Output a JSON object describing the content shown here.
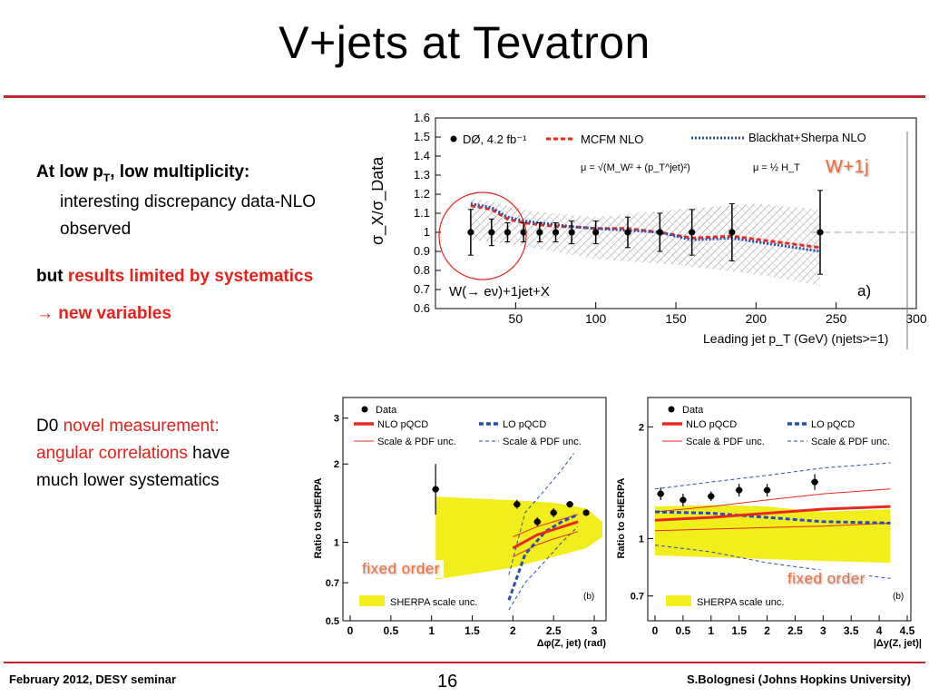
{
  "slide": {
    "title": "V+jets at Tevatron",
    "page_number": "16",
    "footer_left": "February 2012, DESY seminar",
    "footer_right": "S.Bolognesi (Johns Hopkins University)"
  },
  "text": {
    "low_pt_prefix": "At low p",
    "low_pt_sub": "T",
    "low_pt_suffix": ", low multiplicity:",
    "discrepancy_1": "interesting discrepancy data-NLO",
    "discrepancy_2": "observed",
    "but": "but ",
    "systematics": "results limited by systematics",
    "new_vars": "→ new variables",
    "d0": "D0 ",
    "novel": "novel measurement:",
    "angular": "angular correlations",
    "have": " have",
    "lower": "much lower systematics"
  },
  "colors": {
    "accent_red": "#e8201b",
    "rule_red": "#c0282d",
    "nlo_red": "#e62b1e",
    "lo_blue": "#2a4db0",
    "sherpa_yellow": "#f2ee1c",
    "tag_orange": "#f26b3a"
  },
  "tags": {
    "w1j": "W+1j",
    "fixed_order": "fixed order"
  },
  "chart_data": [
    {
      "type": "scatter",
      "name": "a",
      "xlabel": "Leading jet p_T (GeV) (njets>=1)",
      "ylabel": "σ_X/σ_Data",
      "xlim": [
        0,
        300
      ],
      "ylim": [
        0.6,
        1.6
      ],
      "xticks": [
        50,
        100,
        150,
        200,
        250,
        300
      ],
      "yticks": [
        0.6,
        0.7,
        0.8,
        0.9,
        1,
        1.1,
        1.2,
        1.3,
        1.4,
        1.5,
        1.6
      ],
      "legend": {
        "data": "DØ, 4.2 fb⁻¹",
        "mcfm": "MCFM NLO",
        "blackhat": "Blackhat+Sherpa NLO",
        "mcfm_scale": "μ = √(M_W² + (p_T^jet)²)",
        "bh_scale": "μ = ½ H_T"
      },
      "process": "W(→ eν)+1jet+X",
      "panel": "a)",
      "x": [
        22,
        35,
        45,
        55,
        65,
        75,
        85,
        100,
        120,
        140,
        160,
        185,
        240
      ],
      "data": [
        1.0,
        1.0,
        1.0,
        1.0,
        1.0,
        1.0,
        1.0,
        1.0,
        1.0,
        1.0,
        1.0,
        1.0,
        1.0
      ],
      "data_err": [
        0.12,
        0.07,
        0.05,
        0.05,
        0.05,
        0.05,
        0.06,
        0.06,
        0.08,
        0.1,
        0.12,
        0.15,
        0.22
      ],
      "series": [
        {
          "name": "MCFM NLO",
          "values": [
            1.14,
            1.12,
            1.07,
            1.05,
            1.04,
            1.03,
            1.03,
            1.02,
            1.02,
            1.0,
            0.97,
            0.98,
            0.92
          ]
        },
        {
          "name": "Blackhat+Sherpa NLO",
          "values": [
            1.15,
            1.13,
            1.08,
            1.06,
            1.05,
            1.04,
            1.03,
            1.02,
            1.01,
            1.0,
            0.96,
            0.97,
            0.9
          ]
        }
      ]
    },
    {
      "type": "scatter",
      "name": "b-left",
      "xlabel": "Δφ(Z, jet) (rad)",
      "ylabel": "Ratio to SHERPA",
      "xlim": [
        0,
        3.1
      ],
      "ylim": [
        0.5,
        3.6
      ],
      "log_y": true,
      "xticks": [
        0,
        0.5,
        1,
        1.5,
        2,
        2.5,
        3
      ],
      "ytick_labels": [
        "0.5",
        "0.7",
        "1",
        "2",
        "3"
      ],
      "legend": [
        "Data",
        "NLO pQCD",
        "LO pQCD",
        "Scale & PDF unc.",
        "Scale & PDF unc.",
        "SHERPA scale unc."
      ],
      "panel": "(b)",
      "x": [
        1.05,
        2.05,
        2.3,
        2.5,
        2.7,
        2.9
      ],
      "data": [
        1.6,
        1.4,
        1.2,
        1.3,
        1.4,
        1.3
      ]
    },
    {
      "type": "scatter",
      "name": "b-right",
      "xlabel": "|Δy(Z, jet)|",
      "ylabel": "Ratio to SHERPA",
      "xlim": [
        0,
        4.5
      ],
      "ylim": [
        0.6,
        2.4
      ],
      "log_y": true,
      "xticks": [
        0,
        0.5,
        1,
        1.5,
        2,
        2.5,
        3,
        3.5,
        4,
        4.5
      ],
      "ytick_labels": [
        "0.7",
        "1",
        "2"
      ],
      "legend": [
        "Data",
        "NLO pQCD",
        "LO pQCD",
        "Scale & PDF unc.",
        "Scale & PDF unc.",
        "SHERPA scale unc."
      ],
      "panel": "(b)",
      "x": [
        0.1,
        0.5,
        1.0,
        1.5,
        2.0,
        2.85
      ],
      "data": [
        1.32,
        1.27,
        1.3,
        1.35,
        1.35,
        1.42
      ]
    }
  ]
}
